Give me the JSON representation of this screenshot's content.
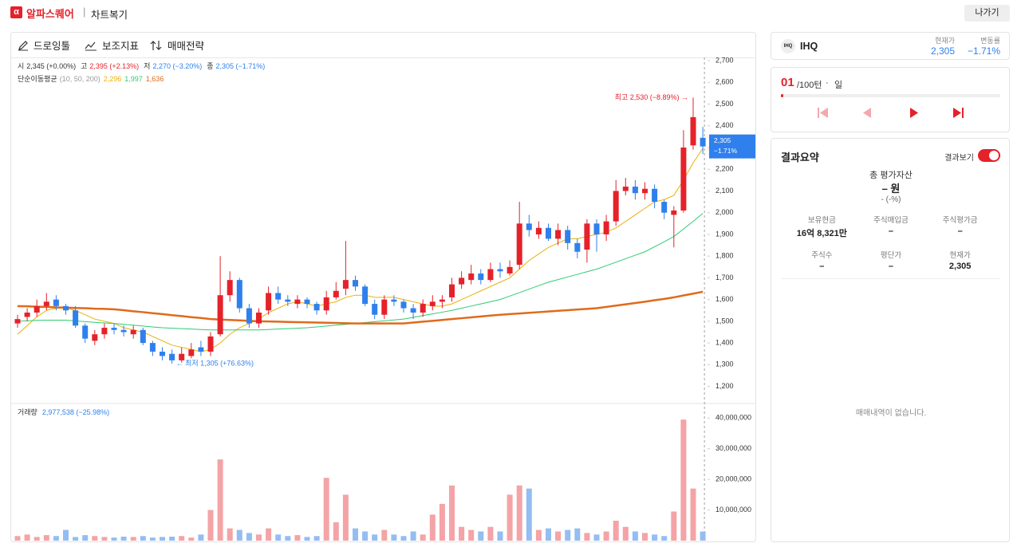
{
  "header": {
    "brand": "알파스퀘어",
    "title": "차트복기",
    "exit": "나가기"
  },
  "toolbar": [
    "드로잉툴",
    "보조지표",
    "매매전략"
  ],
  "chart_data": {
    "type": "candlestick",
    "ohlc_legend": [
      {
        "key": "시",
        "value": "2,345 (+0.00%)",
        "color": "#333333"
      },
      {
        "key": "고",
        "value": "2,395 (+2.13%)",
        "color": "#e5212a"
      },
      {
        "key": "저",
        "value": "2,270 (−3.20%)",
        "color": "#2f80ed"
      },
      {
        "key": "종",
        "value": "2,305 (−1.71%)",
        "color": "#2f80ed"
      }
    ],
    "ma_legend": {
      "label": "단순이동평균",
      "periods": "(10, 50, 200)"
    },
    "up_color": "#e5212a",
    "down_color": "#2f80ed",
    "candles": {
      "open": [
        1490,
        1520,
        1540,
        1570,
        1600,
        1570,
        1550,
        1480,
        1410,
        1440,
        1470,
        1460,
        1440,
        1460,
        1400,
        1360,
        1350,
        1320,
        1340,
        1380,
        1360,
        1440,
        1620,
        1690,
        1560,
        1490,
        1550,
        1630,
        1600,
        1580,
        1600,
        1580,
        1550,
        1610,
        1650,
        1690,
        1660,
        1580,
        1530,
        1600,
        1590,
        1560,
        1540,
        1570,
        1590,
        1610,
        1670,
        1690,
        1720,
        1690,
        1740,
        1720,
        1760,
        1950,
        1900,
        1930,
        1880,
        1920,
        1860,
        1830,
        1950,
        1900,
        1960,
        2100,
        2120,
        2090,
        2110,
        2050,
        1990,
        2010,
        2310,
        2345
      ],
      "high": [
        1530,
        1560,
        1600,
        1630,
        1620,
        1580,
        1570,
        1490,
        1460,
        1490,
        1490,
        1480,
        1480,
        1470,
        1410,
        1380,
        1370,
        1380,
        1400,
        1410,
        1450,
        1800,
        1730,
        1700,
        1580,
        1560,
        1660,
        1660,
        1620,
        1620,
        1610,
        1590,
        1640,
        1680,
        1870,
        1710,
        1670,
        1600,
        1620,
        1620,
        1600,
        1580,
        1600,
        1620,
        1620,
        1700,
        1730,
        1760,
        1740,
        1770,
        1770,
        1780,
        2050,
        1990,
        1960,
        1950,
        1950,
        1940,
        1880,
        1970,
        1970,
        1990,
        2150,
        2160,
        2150,
        2140,
        2130,
        2060,
        2030,
        2380,
        2530,
        2395
      ],
      "low": [
        1470,
        1500,
        1520,
        1550,
        1550,
        1530,
        1470,
        1400,
        1390,
        1420,
        1440,
        1430,
        1420,
        1390,
        1340,
        1320,
        1305,
        1310,
        1330,
        1340,
        1340,
        1430,
        1590,
        1540,
        1470,
        1470,
        1530,
        1580,
        1570,
        1560,
        1560,
        1530,
        1530,
        1600,
        1620,
        1640,
        1570,
        1510,
        1510,
        1570,
        1540,
        1510,
        1520,
        1550,
        1560,
        1590,
        1650,
        1670,
        1670,
        1680,
        1700,
        1710,
        1740,
        1890,
        1880,
        1870,
        1850,
        1830,
        1790,
        1770,
        1820,
        1870,
        1940,
        2080,
        2060,
        2060,
        2020,
        1970,
        1840,
        2000,
        2290,
        2270
      ],
      "close": [
        1510,
        1540,
        1570,
        1590,
        1570,
        1550,
        1480,
        1420,
        1440,
        1470,
        1460,
        1450,
        1460,
        1400,
        1360,
        1340,
        1320,
        1350,
        1370,
        1360,
        1430,
        1620,
        1690,
        1560,
        1490,
        1540,
        1630,
        1600,
        1590,
        1600,
        1580,
        1550,
        1610,
        1640,
        1690,
        1660,
        1580,
        1530,
        1600,
        1590,
        1560,
        1540,
        1580,
        1590,
        1600,
        1670,
        1700,
        1720,
        1690,
        1740,
        1730,
        1750,
        1950,
        1920,
        1930,
        1880,
        1920,
        1860,
        1820,
        1950,
        1900,
        1960,
        2100,
        2120,
        2090,
        2110,
        2050,
        2000,
        2010,
        2300,
        2440,
        2305
      ]
    },
    "ma_series": [
      {
        "name": "2,296",
        "color": "#e8b10c",
        "width": 1,
        "values": [
          1440,
          1480,
          1520,
          1550,
          1560,
          1560,
          1550,
          1530,
          1510,
          1500,
          1490,
          1470,
          1460,
          1450,
          1430,
          1410,
          1390,
          1380,
          1370,
          1360,
          1370,
          1400,
          1440,
          1470,
          1490,
          1510,
          1540,
          1560,
          1580,
          1590,
          1580,
          1570,
          1580,
          1590,
          1610,
          1620,
          1620,
          1610,
          1610,
          1610,
          1600,
          1590,
          1580,
          1570,
          1570,
          1580,
          1600,
          1620,
          1640,
          1660,
          1680,
          1700,
          1740,
          1780,
          1810,
          1840,
          1860,
          1880,
          1880,
          1890,
          1900,
          1910,
          1930,
          1960,
          1990,
          2020,
          2050,
          2060,
          2080,
          2150,
          2230,
          2296
        ]
      },
      {
        "name": "1,997",
        "color": "#2ecc71",
        "width": 1,
        "values": [
          1500,
          1502,
          1504,
          1505,
          1505,
          1505,
          1502,
          1498,
          1495,
          1492,
          1490,
          1486,
          1482,
          1478,
          1474,
          1470,
          1468,
          1466,
          1464,
          1462,
          1460,
          1460,
          1460,
          1460,
          1460,
          1460,
          1462,
          1464,
          1466,
          1468,
          1470,
          1474,
          1478,
          1482,
          1486,
          1490,
          1494,
          1498,
          1502,
          1506,
          1510,
          1518,
          1526,
          1534,
          1542,
          1550,
          1560,
          1570,
          1580,
          1590,
          1600,
          1616,
          1632,
          1648,
          1664,
          1680,
          1692,
          1704,
          1716,
          1728,
          1740,
          1756,
          1772,
          1788,
          1804,
          1820,
          1843,
          1866,
          1890,
          1925,
          1960,
          1997
        ]
      },
      {
        "name": "1,636",
        "color": "#e06a1b",
        "width": 2.5,
        "values": [
          1570,
          1569,
          1567,
          1566,
          1564,
          1563,
          1561,
          1560,
          1558,
          1557,
          1555,
          1551,
          1546,
          1542,
          1537,
          1533,
          1528,
          1524,
          1519,
          1515,
          1510,
          1508,
          1506,
          1504,
          1502,
          1500,
          1499,
          1498,
          1497,
          1496,
          1495,
          1494,
          1493,
          1492,
          1491,
          1490,
          1490,
          1490,
          1490,
          1490,
          1490,
          1494,
          1498,
          1502,
          1506,
          1510,
          1514,
          1518,
          1522,
          1526,
          1530,
          1533,
          1536,
          1539,
          1542,
          1545,
          1548,
          1551,
          1554,
          1557,
          1560,
          1566,
          1572,
          1578,
          1584,
          1590,
          1597,
          1603,
          1610,
          1619,
          1627,
          1636
        ]
      }
    ],
    "ylim": [
      1125,
      2715
    ],
    "yticks": [
      {
        "value": 1200,
        "label": "1,200"
      },
      {
        "value": 1300,
        "label": "1,300"
      },
      {
        "value": 1400,
        "label": "1,400"
      },
      {
        "value": 1500,
        "label": "1,500"
      },
      {
        "value": 1600,
        "label": "1,600"
      },
      {
        "value": 1700,
        "label": "1,700"
      },
      {
        "value": 1800,
        "label": "1,800"
      },
      {
        "value": 1900,
        "label": "1,900"
      },
      {
        "value": 2000,
        "label": "2,000"
      },
      {
        "value": 2100,
        "label": "2,100"
      },
      {
        "value": 2200,
        "label": "2,200"
      },
      {
        "value": 2300,
        "label": "2,300"
      },
      {
        "value": 2400,
        "label": "2,400"
      },
      {
        "value": 2500,
        "label": "2,500"
      },
      {
        "value": 2600,
        "label": "2,600"
      },
      {
        "value": 2700,
        "label": "2,700"
      }
    ],
    "max_label": "최고 2,530 (−8.89%) →",
    "min_label": "← 최저 1,305 (+76.63%)",
    "last_tag": {
      "price": "2,305",
      "change": "−1.71%"
    },
    "volume": {
      "label": "거래량",
      "summary": "2,977,538 (−25.98%)",
      "up_color": "#f4a3a6",
      "down_color": "#94bdf2",
      "values": [
        1500000,
        2000000,
        1200000,
        1800000,
        1500000,
        3500000,
        1200000,
        1800000,
        1500000,
        1200000,
        1000000,
        1300000,
        1200000,
        1500000,
        1000000,
        1200000,
        1300000,
        1500000,
        1000000,
        2000000,
        10000000,
        26500000,
        4000000,
        3500000,
        2500000,
        2000000,
        4000000,
        2000000,
        1500000,
        1800000,
        1200000,
        1500000,
        20500000,
        6000000,
        15000000,
        4000000,
        3000000,
        2000000,
        3500000,
        2000000,
        1500000,
        3000000,
        2000000,
        8500000,
        12000000,
        18000000,
        4500000,
        3500000,
        3000000,
        4500000,
        3000000,
        15000000,
        18000000,
        17000000,
        3500000,
        4000000,
        3000000,
        3500000,
        4000000,
        2500000,
        2000000,
        3000000,
        6500000,
        4500000,
        3000000,
        2500000,
        2000000,
        1500000,
        9500000,
        39500000,
        17000000,
        2977538
      ],
      "ylim": [
        0,
        44500000
      ],
      "yticks": [
        {
          "value": 10000000,
          "label": "10,000,000"
        },
        {
          "value": 20000000,
          "label": "20,000,000"
        },
        {
          "value": 30000000,
          "label": "30,000,000"
        },
        {
          "value": 40000000,
          "label": "40,000,000"
        }
      ]
    }
  },
  "stock": {
    "logo": "IHQ",
    "name": "IHQ",
    "price_label": "현재가",
    "price": "2,305",
    "change_label": "변동률",
    "change": "−1.71%"
  },
  "player": {
    "turn": "01",
    "total": "/100턴",
    "dot": "·",
    "unit": "일"
  },
  "summary": {
    "title": "결과요약",
    "toggle": "결과보기",
    "total_label": "총 평가자산",
    "total": "– 원",
    "total_pct": "- (-%)",
    "items": [
      {
        "label": "보유현금",
        "value": "16억 8,321만"
      },
      {
        "label": "주식매입금",
        "value": "–"
      },
      {
        "label": "주식평가금",
        "value": "–"
      },
      {
        "label": "주식수",
        "value": "–"
      },
      {
        "label": "평단가",
        "value": "–"
      },
      {
        "label": "현재가",
        "value": "2,305"
      }
    ],
    "empty": "매매내역이 없습니다."
  }
}
